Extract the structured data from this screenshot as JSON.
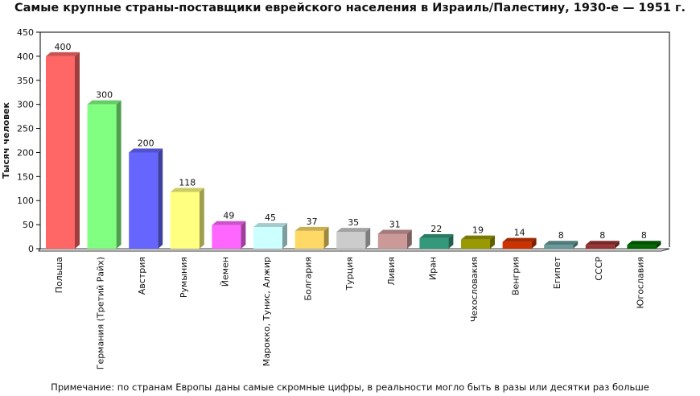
{
  "title": "Самые крупные страны-поставщики еврейского населения в Израиль/Палестину, 1930-е — 1951 г.",
  "note": "Примечание: по странам Европы даны самые скромные цифры, в реальности могло быть в разы или десятки раз больше",
  "chart_data": {
    "type": "bar",
    "title": "Самые крупные страны-поставщики еврейского населения в Израиль/Палестину, 1930-е — 1951 г.",
    "xlabel": "",
    "ylabel": "Тысяч человек",
    "ylim": [
      0,
      450
    ],
    "yticks": [
      0,
      50,
      100,
      150,
      200,
      250,
      300,
      350,
      400,
      450
    ],
    "grid": false,
    "legend": "none",
    "categories": [
      "Польша",
      "Германия (Третий Райх)",
      "Австрия",
      "Румыния",
      "Йемен",
      "Марокко, Тунис, Алжир",
      "Болгария",
      "Турция",
      "Ливия",
      "Иран",
      "Чехословакия",
      "Венгрия",
      "Египет",
      "СССР",
      "Югославия"
    ],
    "values": [
      400,
      300,
      200,
      118,
      49,
      45,
      37,
      35,
      31,
      22,
      19,
      14,
      8,
      8,
      8
    ],
    "colors": [
      "#ff6666",
      "#80ff80",
      "#6666ff",
      "#ffff80",
      "#ff66ff",
      "#ccffff",
      "#ffd966",
      "#cccccc",
      "#cc9999",
      "#33997a",
      "#999900",
      "#cc3300",
      "#669999",
      "#993333",
      "#006600"
    ]
  }
}
